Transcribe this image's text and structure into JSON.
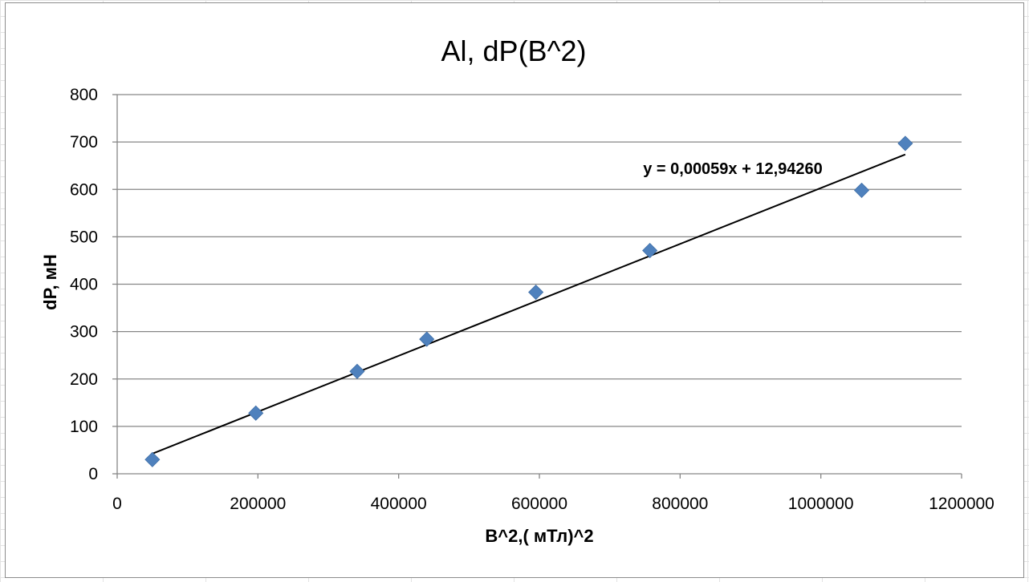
{
  "chart_data": {
    "type": "scatter",
    "title": "Al, dP(B^2)",
    "xlabel": "B^2,( мТл)^2",
    "ylabel": "dP, мН",
    "xlim": [
      0,
      1200000
    ],
    "ylim": [
      0,
      800
    ],
    "x_ticks": [
      0,
      200000,
      400000,
      600000,
      800000,
      1000000,
      1200000
    ],
    "x_tick_labels": [
      "0",
      "200000",
      "400000",
      "600000",
      "800000",
      "1000000",
      "1200000"
    ],
    "y_ticks": [
      0,
      100,
      200,
      300,
      400,
      500,
      600,
      700,
      800
    ],
    "y_tick_labels": [
      "0",
      "100",
      "200",
      "300",
      "400",
      "500",
      "600",
      "700",
      "800"
    ],
    "grid": "horizontal",
    "legend": "none",
    "series": [
      {
        "marker": "diamond",
        "color": "#4F81BD",
        "points": [
          {
            "x": 50000,
            "y": 30
          },
          {
            "x": 197000,
            "y": 128
          },
          {
            "x": 341000,
            "y": 216
          },
          {
            "x": 440000,
            "y": 284
          },
          {
            "x": 595000,
            "y": 383
          },
          {
            "x": 757000,
            "y": 471
          },
          {
            "x": 1058000,
            "y": 598
          },
          {
            "x": 1120000,
            "y": 697
          }
        ]
      }
    ],
    "trendline": {
      "type": "linear",
      "slope": 0.00059,
      "intercept": 12.9426,
      "x_range": [
        50000,
        1120000
      ],
      "color": "#000000",
      "equation": "y = 0,00059x + 12,94260"
    }
  }
}
